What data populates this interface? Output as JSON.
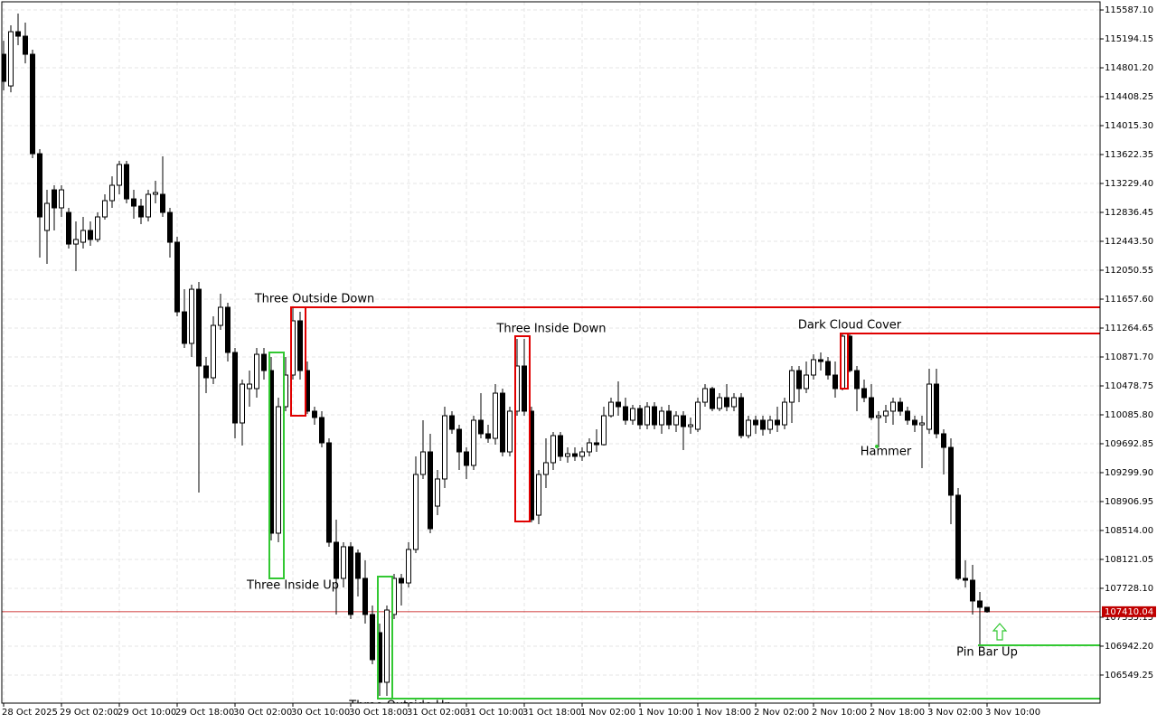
{
  "chart_data": {
    "type": "candlestick",
    "up_color": "#ffffff",
    "down_color": "#000000",
    "grid": true,
    "ylim": [
      106168,
      115698
    ],
    "yticks": [
      {
        "value": 115587.1,
        "label": "115587.10"
      },
      {
        "value": 115194.15,
        "label": "115194.15"
      },
      {
        "value": 114801.2,
        "label": "114801.20"
      },
      {
        "value": 114408.25,
        "label": "114408.25"
      },
      {
        "value": 114015.3,
        "label": "114015.30"
      },
      {
        "value": 113622.35,
        "label": "113622.35"
      },
      {
        "value": 113229.4,
        "label": "113229.40"
      },
      {
        "value": 112836.45,
        "label": "112836.45"
      },
      {
        "value": 112443.5,
        "label": "112443.50"
      },
      {
        "value": 112050.55,
        "label": "112050.55"
      },
      {
        "value": 111657.6,
        "label": "111657.60"
      },
      {
        "value": 111264.65,
        "label": "111264.65"
      },
      {
        "value": 110871.7,
        "label": "110871.70"
      },
      {
        "value": 110478.75,
        "label": "110478.75"
      },
      {
        "value": 110085.8,
        "label": "110085.80"
      },
      {
        "value": 109692.85,
        "label": "109692.85"
      },
      {
        "value": 109299.9,
        "label": "109299.90"
      },
      {
        "value": 108906.95,
        "label": "108906.95"
      },
      {
        "value": 108514.0,
        "label": "108514.00"
      },
      {
        "value": 108121.05,
        "label": "108121.05"
      },
      {
        "value": 107728.1,
        "label": "107728.10"
      },
      {
        "value": 107335.15,
        "label": "107335.15"
      },
      {
        "value": 106942.2,
        "label": "106942.20"
      },
      {
        "value": 106549.25,
        "label": "106549.25"
      }
    ],
    "current_price": {
      "value": 107410.04,
      "label": "107410.04",
      "color": "#c00000"
    },
    "categories": [
      "28 Oct 2025",
      null,
      null,
      null,
      null,
      null,
      null,
      null,
      "29 Oct 02:00",
      null,
      null,
      null,
      null,
      null,
      null,
      null,
      "29 Oct 10:00",
      null,
      null,
      null,
      null,
      null,
      null,
      null,
      "29 Oct 18:00",
      null,
      null,
      null,
      null,
      null,
      null,
      null,
      "30 Oct 02:00",
      null,
      null,
      null,
      null,
      null,
      null,
      null,
      "30 Oct 10:00",
      null,
      null,
      null,
      null,
      null,
      null,
      null,
      "30 Oct 18:00",
      null,
      null,
      null,
      null,
      null,
      null,
      null,
      "31 Oct 02:00",
      null,
      null,
      null,
      null,
      null,
      null,
      null,
      "31 Oct 10:00",
      null,
      null,
      null,
      null,
      null,
      null,
      null,
      "31 Oct 18:00",
      null,
      null,
      null,
      null,
      null,
      null,
      null,
      "1 Nov 02:00",
      null,
      null,
      null,
      null,
      null,
      null,
      null,
      "1 Nov 10:00",
      null,
      null,
      null,
      null,
      null,
      null,
      null,
      "1 Nov 18:00",
      null,
      null,
      null,
      null,
      null,
      null,
      null,
      "2 Nov 02:00",
      null,
      null,
      null,
      null,
      null,
      null,
      null,
      "2 Nov 10:00",
      null,
      null,
      null,
      null,
      null,
      null,
      null,
      "2 Nov 18:00",
      null,
      null,
      null,
      null,
      null,
      null,
      null,
      "3 Nov 02:00",
      null,
      null,
      null,
      null,
      null,
      null,
      null,
      "3 Nov 10:00"
    ],
    "open": [
      114985,
      114555,
      115292,
      115231,
      114985,
      113634,
      112591,
      113143,
      112898,
      112836,
      112406,
      112431,
      112591,
      112468,
      112775,
      112996,
      113205,
      113487,
      113020,
      112922,
      112775,
      113082,
      113082,
      112836,
      112431,
      111485,
      111056,
      111792,
      110749,
      110589,
      111301,
      111547,
      110933,
      109975,
      110442,
      110442,
      110908,
      110687,
      108477,
      110196,
      110626,
      111363,
      110687,
      110135,
      110049,
      109705,
      108354,
      107863,
      108293,
      108207,
      107863,
      107372,
      107126,
      106451,
      107372,
      107863,
      107801,
      108256,
      109275,
      109582,
      108845,
      109214,
      110073,
      109889,
      109582,
      109398,
      110012,
      109828,
      109766,
      110380,
      109582,
      110135,
      110749,
      110135,
      108722,
      109275,
      109435,
      109803,
      109521,
      109557,
      109521,
      109582,
      109705,
      109680,
      110073,
      110257,
      110196,
      110012,
      110171,
      109950,
      110196,
      109950,
      110135,
      109950,
      110073,
      109926,
      109889,
      110257,
      110442,
      110171,
      110319,
      110196,
      110319,
      109803,
      110012,
      110012,
      109889,
      110012,
      109950,
      110257,
      110687,
      110442,
      110626,
      110835,
      110810,
      110626,
      110442,
      111154,
      110687,
      110442,
      110319,
      110049,
      110073,
      110135,
      110257,
      110135,
      110012,
      109950,
      109889,
      110503,
      109828,
      109643,
      108993,
      107863,
      107838,
      107556,
      107470
    ],
    "high": [
      115169,
      115378,
      115538,
      115415,
      115047,
      113696,
      113143,
      113205,
      113205,
      112898,
      112713,
      112775,
      112713,
      112836,
      113082,
      113327,
      113536,
      113536,
      113143,
      113020,
      113143,
      113266,
      113598,
      112898,
      112505,
      111792,
      111854,
      111891,
      110871,
      111424,
      111731,
      111608,
      110994,
      110564,
      110687,
      110994,
      110994,
      110871,
      110319,
      110871,
      111547,
      111485,
      110810,
      110196,
      110135,
      109766,
      108661,
      108354,
      108354,
      108256,
      108108,
      107494,
      107249,
      107494,
      107924,
      107924,
      108354,
      109521,
      110012,
      109828,
      109336,
      110196,
      110135,
      109950,
      109643,
      110073,
      110380,
      109950,
      110503,
      110442,
      110196,
      111117,
      111117,
      110196,
      109336,
      109766,
      109852,
      109852,
      109643,
      109643,
      109643,
      109766,
      109889,
      110196,
      110319,
      110540,
      110319,
      110221,
      110221,
      110257,
      110257,
      110196,
      110221,
      110135,
      110135,
      110049,
      110319,
      110503,
      110466,
      110380,
      110503,
      110380,
      110380,
      110073,
      110073,
      110073,
      110073,
      110196,
      110319,
      110749,
      110749,
      110810,
      110908,
      110933,
      110871,
      110810,
      111203,
      111203,
      110749,
      110564,
      110503,
      110135,
      110221,
      110319,
      110319,
      110196,
      110073,
      110073,
      110712,
      110712,
      109889,
      109766,
      109091,
      108108,
      108047,
      107679,
      107470
    ],
    "low": [
      114494,
      114469,
      115108,
      114862,
      113573,
      112222,
      112136,
      112591,
      112775,
      112345,
      112038,
      112345,
      112382,
      112431,
      112738,
      112898,
      113082,
      112959,
      112750,
      112677,
      112713,
      112959,
      112775,
      112222,
      111424,
      110994,
      110871,
      109029,
      110380,
      110503,
      111240,
      110810,
      109766,
      109668,
      110196,
      110319,
      110564,
      108379,
      108354,
      110135,
      110564,
      110564,
      110098,
      109950,
      109643,
      108293,
      107372,
      107740,
      107310,
      107617,
      107249,
      106696,
      106266,
      106266,
      107310,
      107494,
      107740,
      108207,
      109214,
      108477,
      108722,
      109091,
      109828,
      109336,
      109214,
      109336,
      109766,
      109705,
      109680,
      109521,
      109521,
      110073,
      110073,
      108624,
      108600,
      109091,
      109336,
      109459,
      109435,
      109459,
      109459,
      109521,
      109582,
      109668,
      110049,
      110073,
      109950,
      109950,
      109889,
      109889,
      109889,
      109828,
      109889,
      109852,
      109607,
      109828,
      109852,
      110196,
      110135,
      110135,
      110135,
      110135,
      109766,
      109766,
      109828,
      109803,
      109828,
      109852,
      109889,
      109975,
      110257,
      110380,
      110564,
      110687,
      110564,
      110319,
      110417,
      110663,
      110135,
      110257,
      110012,
      109643,
      109975,
      109950,
      110073,
      109950,
      109852,
      109361,
      109828,
      109766,
      109275,
      108600,
      107838,
      107740,
      107372,
      106942,
      107396
    ],
    "close": [
      114617,
      115292,
      115231,
      114985,
      113634,
      112775,
      112959,
      112898,
      113143,
      112406,
      112468,
      112591,
      112468,
      112775,
      112996,
      113205,
      113487,
      113020,
      112922,
      112775,
      113082,
      113106,
      112836,
      112431,
      111485,
      111056,
      111792,
      110749,
      110589,
      111301,
      111547,
      110933,
      109975,
      110503,
      110503,
      110908,
      110687,
      108477,
      110196,
      110626,
      111363,
      110687,
      110135,
      110049,
      109705,
      108354,
      107863,
      108293,
      107372,
      107863,
      107372,
      106758,
      106451,
      107433,
      107863,
      107801,
      108256,
      109275,
      109582,
      108538,
      109214,
      110073,
      109889,
      109582,
      109398,
      110012,
      109828,
      109766,
      110380,
      109582,
      110135,
      110749,
      110135,
      108661,
      109275,
      109435,
      109803,
      109521,
      109557,
      109521,
      109582,
      109705,
      109680,
      110073,
      110257,
      110196,
      110012,
      110171,
      109950,
      110196,
      109950,
      110135,
      109950,
      110073,
      109926,
      109950,
      110257,
      110442,
      110171,
      110319,
      110196,
      110319,
      109803,
      110012,
      109950,
      109889,
      110012,
      109950,
      110257,
      110687,
      110442,
      110626,
      110835,
      110810,
      110626,
      110442,
      111154,
      110687,
      110442,
      110319,
      110049,
      110073,
      110135,
      110257,
      110135,
      110012,
      109950,
      109975,
      110503,
      109828,
      109643,
      108993,
      107863,
      107838,
      107556,
      107470,
      107410.04
    ],
    "annotations": [
      {
        "text": "Three Outside Down",
        "color": "#e00000"
      },
      {
        "text": "Three Inside Down",
        "color": "#e00000"
      },
      {
        "text": "Dark Cloud Cover",
        "color": "#e00000"
      },
      {
        "text": "Three Inside Up",
        "color": "#32c832"
      },
      {
        "text": "Three Outside Up",
        "color": "#32c832"
      },
      {
        "text": "Hammer",
        "color": "#32c832"
      },
      {
        "text": "Pin Bar Up",
        "color": "#32c832"
      }
    ]
  }
}
